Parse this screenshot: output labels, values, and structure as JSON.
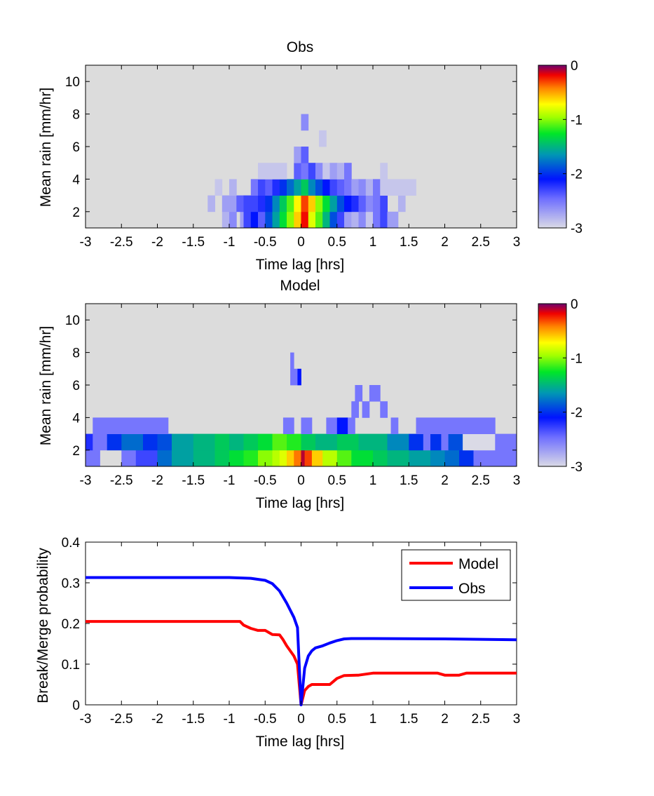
{
  "chart_data": [
    {
      "type": "heatmap",
      "title": "Obs",
      "xlabel": "Time lag [hrs]",
      "ylabel": "Mean rain [mm/hr]",
      "xlim": [
        -3,
        3
      ],
      "ylim": [
        1,
        11
      ],
      "xticks": [
        -3,
        -2.5,
        -2,
        -1.5,
        -1,
        -0.5,
        0,
        0.5,
        1,
        1.5,
        2,
        2.5,
        3
      ],
      "yticks": [
        2,
        4,
        6,
        8,
        10
      ],
      "colorbar": {
        "range": [
          -3,
          0
        ],
        "ticks": [
          0,
          -1,
          -2,
          -3
        ],
        "colormap": "light-gray-blue-green-yellow-red-purple"
      },
      "background_color": "#dcdcdc",
      "rows": [
        {
          "y": [
            1,
            2
          ],
          "cells": [
            [
              -1.1,
              -1.0,
              -2.8
            ],
            [
              -1.0,
              -0.9,
              -2.6
            ],
            [
              -0.85,
              -0.8,
              -2.7
            ],
            [
              -0.8,
              -0.7,
              -2.3
            ],
            [
              -0.7,
              -0.6,
              -2.1
            ],
            [
              -0.6,
              -0.5,
              -2.4
            ],
            [
              -0.5,
              -0.4,
              -1.9
            ],
            [
              -0.4,
              -0.3,
              -1.6
            ],
            [
              -0.3,
              -0.2,
              -1.3
            ],
            [
              -0.2,
              -0.1,
              -1.0
            ],
            [
              -0.1,
              0.0,
              -0.6
            ],
            [
              0.0,
              0.1,
              -0.2
            ],
            [
              0.1,
              0.2,
              -0.8
            ],
            [
              0.2,
              0.3,
              -1.1
            ],
            [
              0.3,
              0.4,
              -1.5
            ],
            [
              0.4,
              0.5,
              -1.9
            ],
            [
              0.5,
              0.6,
              -2.3
            ],
            [
              0.6,
              0.7,
              -2.7
            ],
            [
              0.7,
              0.8,
              -2.8
            ],
            [
              0.8,
              0.9,
              -2.6
            ],
            [
              0.9,
              1.0,
              -2.9
            ],
            [
              1.0,
              1.1,
              -2.5
            ],
            [
              1.1,
              1.2,
              -2.3
            ],
            [
              1.2,
              1.35,
              -2.7
            ]
          ]
        },
        {
          "y": [
            2,
            3
          ],
          "cells": [
            [
              -1.3,
              -1.2,
              -2.8
            ],
            [
              -1.1,
              -0.9,
              -2.7
            ],
            [
              -0.9,
              -0.8,
              -2.4
            ],
            [
              -0.8,
              -0.6,
              -2.3
            ],
            [
              -0.6,
              -0.5,
              -2.2
            ],
            [
              -0.5,
              -0.4,
              -2.0
            ],
            [
              -0.4,
              -0.3,
              -1.7
            ],
            [
              -0.3,
              -0.2,
              -1.4
            ],
            [
              -0.2,
              -0.1,
              -1.1
            ],
            [
              -0.1,
              0.0,
              -0.7
            ],
            [
              0.0,
              0.1,
              -0.3
            ],
            [
              0.1,
              0.2,
              -0.6
            ],
            [
              0.2,
              0.3,
              -1.0
            ],
            [
              0.3,
              0.4,
              -1.3
            ],
            [
              0.4,
              0.5,
              -1.6
            ],
            [
              0.5,
              0.6,
              -1.9
            ],
            [
              0.6,
              0.7,
              -2.1
            ],
            [
              0.7,
              0.8,
              -2.2
            ],
            [
              0.8,
              0.9,
              -2.4
            ],
            [
              0.9,
              1.0,
              -2.6
            ],
            [
              1.0,
              1.1,
              -2.5
            ],
            [
              1.1,
              1.2,
              -2.3
            ],
            [
              1.35,
              1.45,
              -2.8
            ]
          ]
        },
        {
          "y": [
            3,
            4
          ],
          "cells": [
            [
              -1.2,
              -1.1,
              -2.9
            ],
            [
              -1.0,
              -0.9,
              -2.8
            ],
            [
              -0.7,
              -0.6,
              -2.5
            ],
            [
              -0.6,
              -0.5,
              -2.3
            ],
            [
              -0.5,
              -0.4,
              -2.4
            ],
            [
              -0.4,
              -0.3,
              -2.2
            ],
            [
              -0.3,
              -0.2,
              -2.0
            ],
            [
              -0.2,
              -0.1,
              -1.8
            ],
            [
              -0.1,
              0.0,
              -1.6
            ],
            [
              0.0,
              0.1,
              -1.4
            ],
            [
              0.1,
              0.2,
              -1.7
            ],
            [
              0.2,
              0.3,
              -1.9
            ],
            [
              0.3,
              0.4,
              -2.1
            ],
            [
              0.4,
              0.5,
              -2.3
            ],
            [
              0.5,
              0.6,
              -2.4
            ],
            [
              0.6,
              0.7,
              -2.5
            ],
            [
              0.7,
              0.8,
              -2.7
            ],
            [
              0.8,
              0.9,
              -2.6
            ],
            [
              0.9,
              1.0,
              -2.8
            ],
            [
              1.0,
              1.1,
              -2.5
            ],
            [
              1.1,
              1.6,
              -2.9
            ]
          ]
        },
        {
          "y": [
            4,
            5
          ],
          "cells": [
            [
              -0.6,
              -0.2,
              -2.9
            ],
            [
              -0.1,
              0.0,
              -2.4
            ],
            [
              0.0,
              0.1,
              -2.5
            ],
            [
              0.1,
              0.2,
              -2.3
            ],
            [
              0.2,
              0.3,
              -2.6
            ],
            [
              0.3,
              0.4,
              -2.9
            ],
            [
              0.4,
              0.5,
              -2.7
            ],
            [
              0.5,
              0.6,
              -2.8
            ],
            [
              0.6,
              0.7,
              -2.5
            ],
            [
              1.1,
              1.2,
              -2.9
            ]
          ]
        },
        {
          "y": [
            5,
            6
          ],
          "cells": [
            [
              -0.1,
              0.0,
              -2.7
            ],
            [
              0.0,
              0.1,
              -2.4
            ]
          ]
        },
        {
          "y": [
            6,
            7
          ],
          "cells": [
            [
              0.25,
              0.35,
              -2.9
            ]
          ]
        },
        {
          "y": [
            7,
            8
          ],
          "cells": [
            [
              0.0,
              0.1,
              -2.6
            ]
          ]
        }
      ]
    },
    {
      "type": "heatmap",
      "title": "Model",
      "xlabel": "Time lag [hrs]",
      "ylabel": "Mean rain [mm/hr]",
      "xlim": [
        -3,
        3
      ],
      "ylim": [
        1,
        11
      ],
      "xticks": [
        -3,
        -2.5,
        -2,
        -1.5,
        -1,
        -0.5,
        0,
        0.5,
        1,
        1.5,
        2,
        2.5,
        3
      ],
      "yticks": [
        2,
        4,
        6,
        8,
        10
      ],
      "colorbar": {
        "range": [
          -3,
          0
        ],
        "ticks": [
          0,
          -1,
          -2,
          -3
        ],
        "colormap": "light-gray-blue-green-yellow-red-purple"
      },
      "background_color": "#dcdcdc",
      "rows": [
        {
          "y": [
            1,
            2
          ],
          "cells": [
            [
              -3.0,
              -2.8,
              -2.5
            ],
            [
              -2.5,
              -2.3,
              -2.5
            ],
            [
              -2.3,
              -2.0,
              -2.3
            ],
            [
              -2.0,
              -1.8,
              -1.8
            ],
            [
              -1.8,
              -1.5,
              -1.6
            ],
            [
              -1.5,
              -1.2,
              -1.5
            ],
            [
              -1.2,
              -1.0,
              -1.4
            ],
            [
              -1.0,
              -0.8,
              -1.3
            ],
            [
              -0.8,
              -0.6,
              -1.2
            ],
            [
              -0.6,
              -0.4,
              -1.0
            ],
            [
              -0.4,
              -0.3,
              -0.9
            ],
            [
              -0.3,
              -0.2,
              -0.8
            ],
            [
              -0.2,
              -0.1,
              -0.6
            ],
            [
              -0.1,
              0.0,
              -0.4
            ],
            [
              0.0,
              0.05,
              -0.1
            ],
            [
              0.05,
              0.15,
              -0.3
            ],
            [
              0.15,
              0.3,
              -0.6
            ],
            [
              0.3,
              0.5,
              -0.9
            ],
            [
              0.5,
              0.7,
              -1.1
            ],
            [
              0.7,
              1.0,
              -1.3
            ],
            [
              1.0,
              1.2,
              -1.4
            ],
            [
              1.2,
              1.5,
              -1.5
            ],
            [
              1.5,
              1.8,
              -1.6
            ],
            [
              1.8,
              2.0,
              -1.7
            ],
            [
              2.0,
              2.2,
              -1.8
            ],
            [
              2.2,
              2.4,
              -2.0
            ],
            [
              2.4,
              3.0,
              -2.5
            ]
          ]
        },
        {
          "y": [
            2,
            3
          ],
          "cells": [
            [
              -3.0,
              -2.9,
              -2.2
            ],
            [
              -2.9,
              -2.7,
              -2.5
            ],
            [
              -2.7,
              -2.5,
              -2.0
            ],
            [
              -2.5,
              -2.2,
              -1.8
            ],
            [
              -2.2,
              -2.0,
              -2.0
            ],
            [
              -2.0,
              -1.8,
              -1.9
            ],
            [
              -1.8,
              -1.5,
              -1.6
            ],
            [
              -1.5,
              -1.2,
              -1.5
            ],
            [
              -1.2,
              -1.0,
              -1.4
            ],
            [
              -1.0,
              -0.8,
              -1.5
            ],
            [
              -0.8,
              -0.6,
              -1.4
            ],
            [
              -0.6,
              -0.4,
              -1.3
            ],
            [
              -0.4,
              -0.2,
              -1.1
            ],
            [
              -0.2,
              0.0,
              -1.2
            ],
            [
              0.0,
              0.2,
              -1.4
            ],
            [
              0.2,
              0.5,
              -1.5
            ],
            [
              0.5,
              0.8,
              -1.4
            ],
            [
              0.8,
              1.2,
              -1.5
            ],
            [
              1.2,
              1.5,
              -1.7
            ],
            [
              1.5,
              1.7,
              -2.0
            ],
            [
              1.7,
              1.8,
              -2.5
            ],
            [
              1.8,
              1.95,
              -2.0
            ],
            [
              1.95,
              2.05,
              -2.5
            ],
            [
              2.05,
              2.25,
              -1.9
            ],
            [
              2.25,
              2.7,
              -3.0
            ],
            [
              2.7,
              3.0,
              -2.5
            ]
          ]
        },
        {
          "y": [
            3,
            4
          ],
          "cells": [
            [
              -2.9,
              -1.85,
              -2.5
            ],
            [
              -0.25,
              -0.1,
              -2.5
            ],
            [
              0.0,
              0.15,
              -2.5
            ],
            [
              0.35,
              0.5,
              -2.5
            ],
            [
              0.5,
              0.65,
              -2.1
            ],
            [
              0.65,
              0.75,
              -2.5
            ],
            [
              1.25,
              1.35,
              -2.5
            ],
            [
              1.6,
              2.7,
              -2.5
            ]
          ]
        },
        {
          "y": [
            4,
            5
          ],
          "cells": [
            [
              0.7,
              0.8,
              -2.5
            ],
            [
              0.85,
              0.95,
              -2.5
            ],
            [
              1.1,
              1.2,
              -2.5
            ]
          ]
        },
        {
          "y": [
            5,
            6
          ],
          "cells": [
            [
              0.75,
              0.85,
              -2.5
            ],
            [
              0.95,
              1.1,
              -2.5
            ]
          ]
        },
        {
          "y": [
            6,
            7
          ],
          "cells": [
            [
              -0.15,
              -0.05,
              -2.5
            ],
            [
              -0.05,
              0.0,
              -2.1
            ]
          ]
        },
        {
          "y": [
            7,
            8
          ],
          "cells": [
            [
              -0.15,
              -0.1,
              -2.5
            ]
          ]
        }
      ]
    },
    {
      "type": "line",
      "title": "",
      "xlabel": "Time lag [hrs]",
      "ylabel": "Break/Merge probability",
      "xlim": [
        -3,
        3
      ],
      "ylim": [
        0,
        0.4
      ],
      "xticks": [
        -3,
        -2.5,
        -2,
        -1.5,
        -1,
        -0.5,
        0,
        0.5,
        1,
        1.5,
        2,
        2.5,
        3
      ],
      "yticks": [
        0,
        0.1,
        0.2,
        0.3,
        0.4
      ],
      "grid": false,
      "legend": "top-right",
      "series": [
        {
          "name": "Model",
          "color": "#ff0000",
          "x": [
            -3.0,
            -0.85,
            -0.8,
            -0.7,
            -0.6,
            -0.5,
            -0.4,
            -0.3,
            -0.25,
            -0.2,
            -0.1,
            -0.05,
            0.0,
            0.05,
            0.1,
            0.15,
            0.2,
            0.4,
            0.5,
            0.6,
            0.8,
            1.0,
            1.9,
            2.0,
            2.2,
            2.3,
            3.0
          ],
          "y": [
            0.205,
            0.205,
            0.196,
            0.188,
            0.183,
            0.183,
            0.173,
            0.172,
            0.16,
            0.145,
            0.12,
            0.1,
            0.0,
            0.035,
            0.045,
            0.05,
            0.05,
            0.05,
            0.065,
            0.072,
            0.073,
            0.078,
            0.078,
            0.073,
            0.073,
            0.078,
            0.078
          ]
        },
        {
          "name": "Obs",
          "color": "#0000ff",
          "x": [
            -3.0,
            -1.0,
            -0.7,
            -0.5,
            -0.4,
            -0.3,
            -0.2,
            -0.1,
            -0.05,
            0.0,
            0.05,
            0.1,
            0.15,
            0.2,
            0.3,
            0.4,
            0.5,
            0.6,
            0.7,
            1.0,
            2.0,
            3.0
          ],
          "y": [
            0.313,
            0.313,
            0.311,
            0.306,
            0.298,
            0.28,
            0.25,
            0.215,
            0.19,
            0.0,
            0.09,
            0.12,
            0.133,
            0.14,
            0.145,
            0.152,
            0.158,
            0.162,
            0.163,
            0.163,
            0.162,
            0.16
          ]
        }
      ]
    }
  ]
}
